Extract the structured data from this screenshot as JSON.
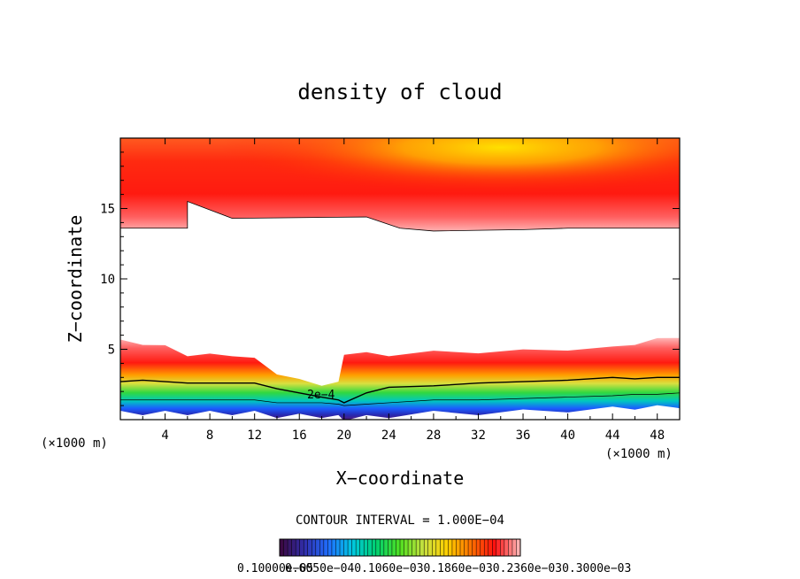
{
  "chart_data": {
    "type": "heatmap",
    "title": "density of cloud",
    "xlabel": "X−coordinate",
    "ylabel": "Z−coordinate",
    "x_unit": "(×1000 m)",
    "y_unit": "(×1000 m)",
    "xlim": [
      0,
      50
    ],
    "ylim": [
      0,
      20
    ],
    "x_ticks": [
      4,
      8,
      12,
      16,
      20,
      24,
      28,
      32,
      36,
      40,
      44,
      48
    ],
    "y_ticks": [
      5,
      10,
      15
    ],
    "x_tick_labels": [
      "4",
      "8",
      "12",
      "16",
      "20",
      "24",
      "28",
      "32",
      "36",
      "40",
      "44",
      "48"
    ],
    "y_tick_labels": [
      "5",
      "10",
      "15"
    ],
    "contour_interval": "CONTOUR INTERVAL = 1.000E−04",
    "contour_label": "2e−4",
    "colorbar_label_text": "0.10000e−05",
    "colorbar_label_overlap": "0.6050e−040.1060e−030.1860e−030.2360e−030.3000e−03",
    "colorbar_range": [
      1e-06,
      0.0003
    ],
    "colormap": [
      "#3b0a45",
      "#3030b0",
      "#2070ff",
      "#00c8e0",
      "#00d070",
      "#50e020",
      "#c8e040",
      "#ffd000",
      "#ff7000",
      "#ff1010",
      "#ffb0b0"
    ],
    "upper_layer": {
      "bottom_z": [
        13.6,
        13.6,
        15.5,
        14.3,
        14.4,
        13.6,
        13.4,
        13.5,
        13.6,
        13.6,
        13.6
      ],
      "bottom_x": [
        0,
        6,
        6,
        10,
        22,
        25,
        28,
        36,
        40,
        46,
        50
      ],
      "top_z": 20
    },
    "lower_layer": {
      "x": [
        0,
        2,
        4,
        6,
        8,
        10,
        12,
        14,
        16,
        18,
        19.5,
        20,
        22,
        24,
        28,
        32,
        36,
        40,
        44,
        46,
        48,
        50
      ],
      "cloud_top_z": [
        5.6,
        5.4,
        5.2,
        4.6,
        4.6,
        4.6,
        4.3,
        3.3,
        2.8,
        2.5,
        2.6,
        4.7,
        4.7,
        4.6,
        4.8,
        4.8,
        4.9,
        5.0,
        5.1,
        5.4,
        5.7,
        5.9
      ],
      "contour_2e4_z": [
        2.7,
        2.8,
        2.7,
        2.6,
        2.6,
        2.6,
        2.6,
        2.2,
        1.9,
        1.6,
        1.4,
        1.2,
        1.9,
        2.3,
        2.4,
        2.6,
        2.7,
        2.8,
        3.0,
        2.9,
        3.0,
        3.0
      ],
      "cloud_base_z": [
        0.5,
        0.5,
        0.5,
        0.5,
        0.5,
        0.5,
        0.5,
        0.3,
        0.3,
        0.3,
        0.2,
        0.1,
        0.2,
        0.3,
        0.5,
        0.5,
        0.6,
        0.7,
        0.8,
        0.9,
        0.9,
        1.0
      ]
    }
  }
}
